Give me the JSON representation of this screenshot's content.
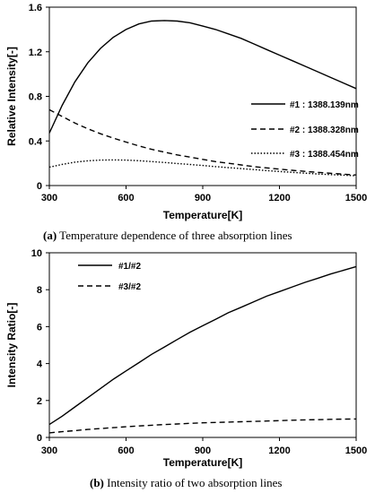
{
  "chart_data": [
    {
      "type": "line",
      "caption_letter": "(a)",
      "caption_text": " Temperature dependence of three absorption lines",
      "xlabel": "Temperature[K]",
      "ylabel": "Relative Intensity[-]",
      "xlim": [
        300,
        1500
      ],
      "ylim": [
        0,
        1.6
      ],
      "xticks": [
        300,
        600,
        900,
        1200,
        1500
      ],
      "yticks": [
        0,
        0.4,
        0.8,
        1.2,
        1.6
      ],
      "ytick_labels": [
        "0",
        "0.4",
        "0.8",
        "1.2",
        "1.6"
      ],
      "legend_position": "right",
      "series": [
        {
          "name": "#1 : 1388.139nm",
          "style": "solid",
          "x": [
            300,
            350,
            400,
            450,
            500,
            550,
            600,
            650,
            700,
            750,
            800,
            850,
            900,
            950,
            1000,
            1050,
            1100,
            1150,
            1200,
            1250,
            1300,
            1350,
            1400,
            1450,
            1500
          ],
          "y": [
            0.47,
            0.72,
            0.93,
            1.1,
            1.23,
            1.33,
            1.4,
            1.45,
            1.475,
            1.48,
            1.475,
            1.46,
            1.43,
            1.4,
            1.36,
            1.32,
            1.27,
            1.22,
            1.17,
            1.12,
            1.07,
            1.02,
            0.97,
            0.92,
            0.87
          ]
        },
        {
          "name": "#2 : 1388.328nm",
          "style": "dashed",
          "x": [
            300,
            350,
            400,
            450,
            500,
            550,
            600,
            650,
            700,
            750,
            800,
            850,
            900,
            950,
            1000,
            1050,
            1100,
            1150,
            1200,
            1250,
            1300,
            1350,
            1400,
            1450,
            1500
          ],
          "y": [
            0.68,
            0.62,
            0.56,
            0.51,
            0.465,
            0.425,
            0.39,
            0.355,
            0.325,
            0.3,
            0.275,
            0.255,
            0.235,
            0.215,
            0.2,
            0.185,
            0.17,
            0.158,
            0.147,
            0.137,
            0.127,
            0.118,
            0.11,
            0.102,
            0.095
          ]
        },
        {
          "name": "#3 : 1388.454nm",
          "style": "dotted",
          "x": [
            300,
            350,
            400,
            450,
            500,
            550,
            600,
            650,
            700,
            750,
            800,
            850,
            900,
            950,
            1000,
            1050,
            1100,
            1150,
            1200,
            1250,
            1300,
            1350,
            1400,
            1450,
            1500
          ],
          "y": [
            0.165,
            0.19,
            0.21,
            0.222,
            0.228,
            0.23,
            0.228,
            0.223,
            0.215,
            0.207,
            0.198,
            0.189,
            0.18,
            0.17,
            0.161,
            0.152,
            0.143,
            0.134,
            0.126,
            0.118,
            0.111,
            0.104,
            0.098,
            0.093,
            0.088
          ]
        }
      ]
    },
    {
      "type": "line",
      "caption_letter": "(b)",
      "caption_text": " Intensity ratio of two absorption lines",
      "xlabel": "Temperature[K]",
      "ylabel": "Intensity Ratio[-]",
      "xlim": [
        300,
        1500
      ],
      "ylim": [
        0,
        10
      ],
      "xticks": [
        300,
        600,
        900,
        1200,
        1500
      ],
      "yticks": [
        0,
        2,
        4,
        6,
        8,
        10
      ],
      "ytick_labels": [
        "0",
        "2",
        "4",
        "6",
        "8",
        "10"
      ],
      "legend_position": "top-left",
      "series": [
        {
          "name": "#1/#2",
          "style": "solid",
          "x": [
            300,
            350,
            400,
            450,
            500,
            550,
            600,
            650,
            700,
            750,
            800,
            850,
            900,
            950,
            1000,
            1050,
            1100,
            1150,
            1200,
            1250,
            1300,
            1350,
            1400,
            1450,
            1500
          ],
          "y": [
            0.7,
            1.15,
            1.65,
            2.15,
            2.65,
            3.15,
            3.6,
            4.05,
            4.5,
            4.9,
            5.3,
            5.7,
            6.05,
            6.4,
            6.75,
            7.05,
            7.35,
            7.65,
            7.9,
            8.15,
            8.4,
            8.62,
            8.85,
            9.05,
            9.25
          ]
        },
        {
          "name": "#3/#2",
          "style": "dashed",
          "x": [
            300,
            350,
            400,
            450,
            500,
            550,
            600,
            650,
            700,
            750,
            800,
            850,
            900,
            950,
            1000,
            1050,
            1100,
            1150,
            1200,
            1250,
            1300,
            1350,
            1400,
            1450,
            1500
          ],
          "y": [
            0.25,
            0.31,
            0.37,
            0.43,
            0.48,
            0.53,
            0.58,
            0.62,
            0.66,
            0.7,
            0.73,
            0.76,
            0.79,
            0.81,
            0.83,
            0.85,
            0.87,
            0.89,
            0.91,
            0.93,
            0.95,
            0.96,
            0.98,
            0.99,
            1.0
          ]
        }
      ]
    }
  ]
}
